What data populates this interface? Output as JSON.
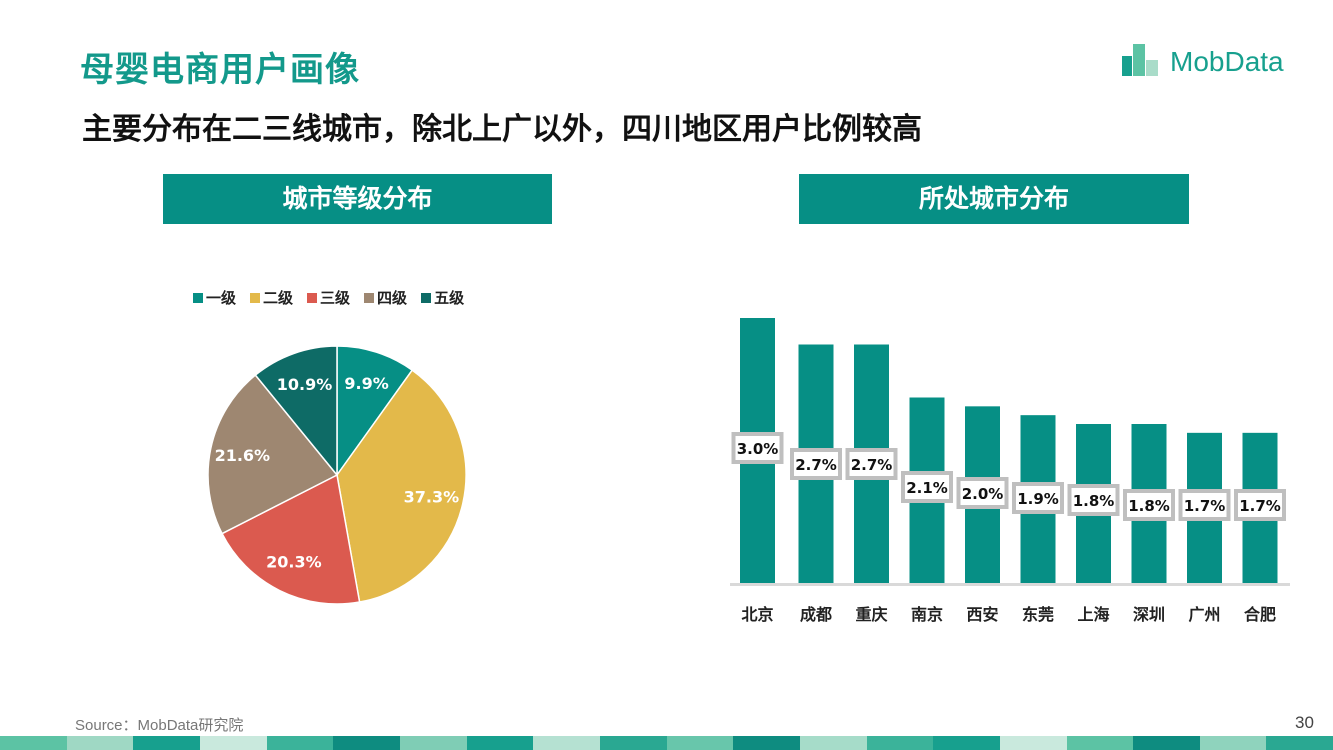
{
  "header": {
    "title": "母婴电商用户画像",
    "subtitle": "主要分布在二三线城市，除北上广以外，四川地区用户比例较高",
    "logo_text": "MobData"
  },
  "sections": {
    "left_title": "城市等级分布",
    "right_title": "所处城市分布"
  },
  "chart_data": [
    {
      "type": "pie",
      "categories": [
        "一级",
        "二级",
        "三级",
        "四级",
        "五级"
      ],
      "values": [
        9.9,
        37.3,
        20.3,
        21.6,
        10.9
      ],
      "labels": [
        "9.9%",
        "37.3%",
        "20.3%",
        "21.6%",
        "10.9%"
      ],
      "colors": [
        "#068f85",
        "#e3b94a",
        "#db5a4f",
        "#9e8771",
        "#0e6b66"
      ],
      "legend": "top"
    },
    {
      "type": "bar",
      "categories": [
        "北京",
        "成都",
        "重庆",
        "南京",
        "西安",
        "东莞",
        "上海",
        "深圳",
        "广州",
        "合肥"
      ],
      "values": [
        3.0,
        2.7,
        2.7,
        2.1,
        2.0,
        1.9,
        1.8,
        1.8,
        1.7,
        1.7
      ],
      "labels": [
        "3.0%",
        "2.7%",
        "2.7%",
        "2.1%",
        "2.0%",
        "1.9%",
        "1.8%",
        "1.8%",
        "1.7%",
        "1.7%"
      ],
      "color": "#068f85",
      "ylim": [
        0,
        3.0
      ]
    }
  ],
  "footer": {
    "source": "Source：MobData研究院",
    "page_number": "30"
  }
}
